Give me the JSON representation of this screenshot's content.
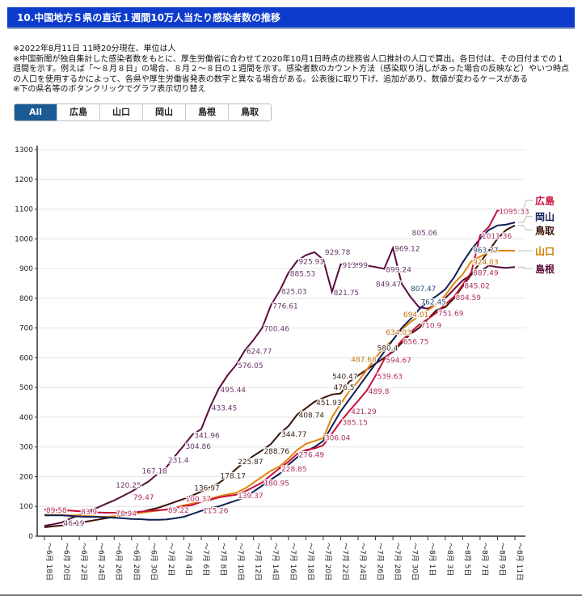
{
  "header": {
    "title": "10.中国地方５県の直近１週間10万人当たり感染者数の推移"
  },
  "notes": [
    "※2022年8月11日 11時20分現在、単位は人",
    "※中国新聞が独自集計した感染者数をもとに、厚生労働省に合わせて2020年10月1日時点の総務省人口推計の人口で算出。各日付は、その日付までの１週間を示す。例えば「～８月８日」の場合、８月２～８日の１週間を示す。感染者数のカウント方法（感染取り消しがあった場合の反映など）やいつ時点の人口を使用するかによって、各県や厚生労働省発表の数字と異なる場合がある。公表後に取り下げ、追加があり、数値が変わるケースがある",
    "※下の県名等のボタンクリックでグラフ表示切り替え"
  ],
  "buttons": [
    {
      "label": "All",
      "active": true
    },
    {
      "label": "広島"
    },
    {
      "label": "山口"
    },
    {
      "label": "岡山"
    },
    {
      "label": "島根"
    },
    {
      "label": "鳥取"
    }
  ],
  "chart_data": {
    "type": "line",
    "title": "10.中国地方５県の直近１週間10万人当たり感染者数の推移",
    "xlabel": "",
    "ylabel": "",
    "ylim": [
      0,
      1300
    ],
    "yticks": [
      0,
      100,
      200,
      300,
      400,
      500,
      600,
      700,
      800,
      900,
      1000,
      1100,
      1200,
      1300
    ],
    "grid": true,
    "legend": "right (line-end labels)",
    "start_date": "6/18",
    "x_tick_labels": [
      "～6月 18日",
      "～6月 20日",
      "～6月 22日",
      "～6月 24日",
      "～6月 26日",
      "～6月 28日",
      "～6月 30日",
      "～7月 2日",
      "～7月 4日",
      "～7月 6日",
      "～7月 8日",
      "～7月 10日",
      "～7月 12日",
      "～7月 14日",
      "～7月 16日",
      "～7月 18日",
      "～7月 20日",
      "～7月 22日",
      "～7月 24日",
      "～7月 26日",
      "～7月 28日",
      "～7月 30日",
      "～8月 1日",
      "～8月 3日",
      "～8月 5日",
      "～8月 7日",
      "～8月 9日",
      "～8月 11日"
    ],
    "series": [
      {
        "name": "広島",
        "color": "#c8103c",
        "labelColor": "#b0305e",
        "values": [
          89.58,
          88,
          87,
          86,
          83.9,
          82,
          80,
          79,
          78.94,
          79,
          79.47,
          82,
          85,
          87,
          89.22,
          95,
          100.37,
          105,
          115.26,
          122,
          130,
          135,
          139.37,
          150,
          165,
          180.95,
          205,
          228.85,
          250,
          276.49,
          290,
          295,
          306.04,
          345,
          385.15,
          421.29,
          455,
          489.8,
          539.63,
          594.67,
          625,
          656.75,
          685,
          710.9,
          730,
          751.69,
          780,
          804.59,
          845.02,
          887.49,
          1011.36,
          1040,
          1095.33,
          1095.33,
          1095.33
        ],
        "labels": [
          0,
          4,
          8,
          10,
          14,
          16,
          18,
          22,
          25,
          27,
          29,
          32,
          34,
          35,
          37,
          38,
          39,
          41,
          43,
          45,
          47,
          48,
          49,
          50,
          52
        ]
      },
      {
        "name": "岡山",
        "color": "#0f1f55",
        "labelColor": "#2e4a70",
        "values": [
          70,
          70,
          70,
          68,
          66,
          65,
          65,
          63,
          62,
          60,
          58,
          57,
          55,
          55,
          56,
          60,
          65,
          75,
          85,
          95,
          100,
          110,
          120,
          130,
          150,
          170,
          190,
          210,
          240,
          265,
          285,
          300,
          320,
          370,
          420,
          460,
          500,
          540,
          580,
          620,
          660,
          700,
          730,
          762.45,
          790,
          807.47,
          830,
          870,
          920,
          963.77,
          1000,
          1030,
          1045,
          1048,
          1055
        ],
        "labels": [
          43,
          45,
          49
        ]
      },
      {
        "name": "鳥取",
        "color": "#3a1206",
        "labelColor": "#3a2418",
        "values": [
          30,
          33,
          36,
          40,
          45,
          50,
          55,
          60,
          65,
          70,
          75,
          80,
          88,
          95,
          105,
          115,
          125,
          136.97,
          150,
          165,
          178.17,
          200,
          225.87,
          250,
          270,
          288.76,
          310,
          344.77,
          370,
          408.74,
          430,
          451.93,
          465,
          476.5,
          480,
          520,
          540.47,
          560,
          580.4,
          600,
          620,
          650,
          680,
          700,
          730,
          760,
          770,
          800,
          840,
          880,
          920,
          960,
          1000,
          1030,
          1045
        ],
        "labels": [
          17,
          20,
          22,
          25,
          27,
          29,
          31,
          33,
          36,
          38
        ]
      },
      {
        "name": "山口",
        "color": "#e0860e",
        "labelColor": "#c07010",
        "values": [
          72,
          72,
          71,
          70,
          70,
          68,
          66,
          65,
          67,
          70,
          74,
          78,
          82,
          86,
          90,
          96,
          104,
          110,
          118,
          126,
          134,
          140,
          146,
          160,
          180,
          200,
          220,
          235,
          260,
          290,
          310,
          320,
          330,
          400,
          445,
          487.68,
          520,
          560,
          600,
          634.03,
          660,
          694.01,
          720,
          740,
          760,
          780,
          810,
          850,
          880,
          924.03,
          940,
          955,
          960,
          960,
          960
        ],
        "labels": [
          35,
          39,
          41,
          49
        ]
      },
      {
        "name": "島根",
        "color": "#5a0c3c",
        "labelColor": "#6a3868",
        "values": [
          35,
          40,
          46.19,
          60,
          70,
          83.9,
          95,
          108,
          120.25,
          135,
          150,
          167.18,
          185,
          210,
          231.4,
          270,
          304.86,
          341.96,
          360,
          433.45,
          495.44,
          540,
          576.05,
          624.77,
          660,
          700.46,
          776.61,
          825.03,
          885.53,
          925.91,
          945,
          955,
          929.78,
          821.75,
          913.99,
          915,
          915,
          910,
          905,
          899.24,
          969.12,
          849.47,
          805.06,
          770,
          765,
          780,
          800,
          830,
          860,
          880,
          890,
          910,
          905,
          902,
          905
        ],
        "labels": [
          2,
          8,
          11,
          14,
          16,
          17,
          19,
          20,
          22,
          23,
          25,
          26,
          27,
          28,
          29,
          32,
          33,
          34,
          39,
          40,
          41,
          42
        ]
      }
    ]
  }
}
